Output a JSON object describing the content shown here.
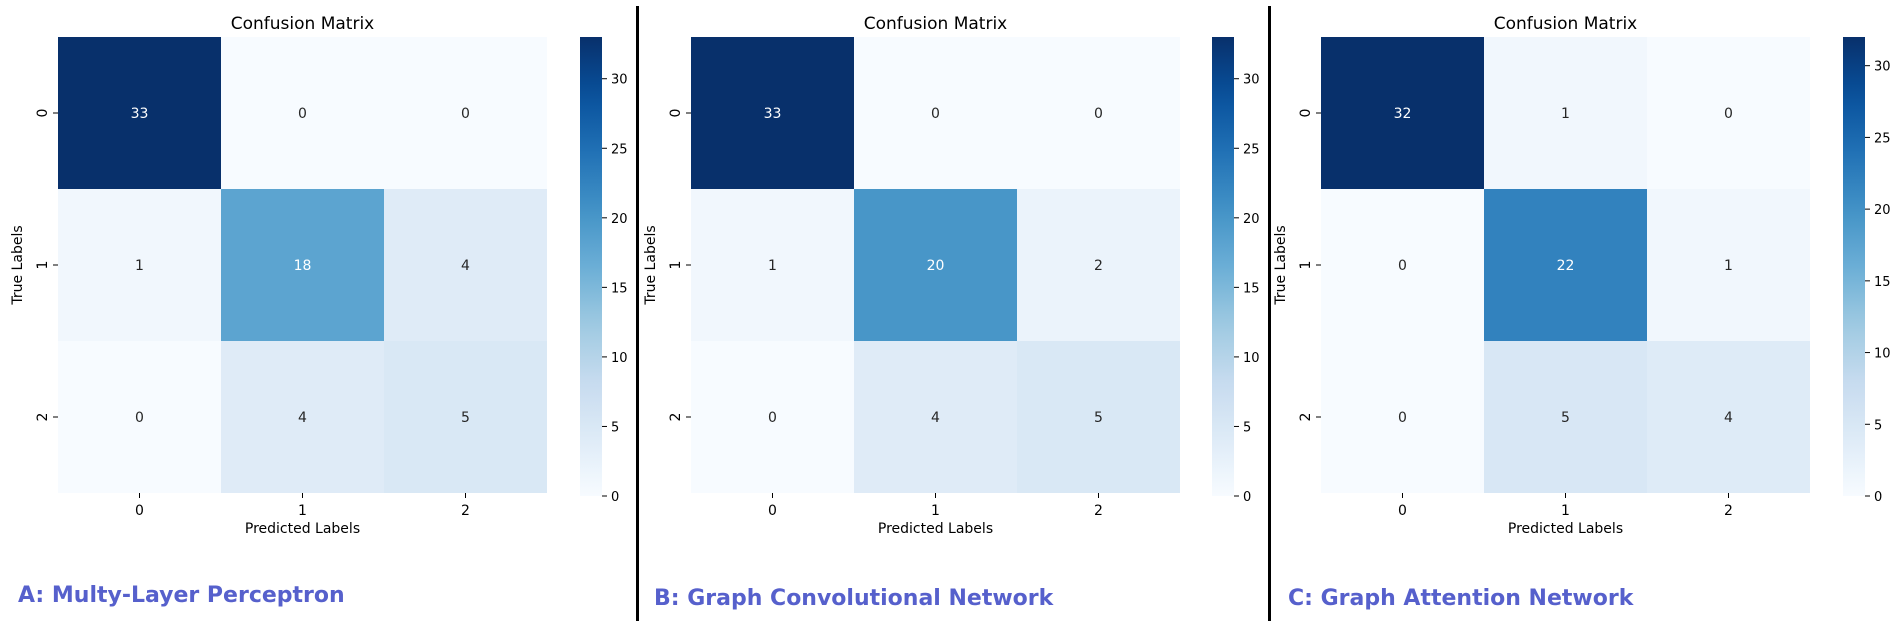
{
  "colormap": "Blues",
  "colors": {
    "cmap_low": "#f7fbff",
    "cmap_high": "#08306b",
    "caption": "#5660cc",
    "divider": "#000000"
  },
  "panels": [
    {
      "caption": "A: Multy-Layer Perceptron"
    },
    {
      "caption": "B: Graph Convolutional Network"
    },
    {
      "caption": "C: Graph Attention Network"
    }
  ],
  "chart_data": [
    {
      "type": "heatmap",
      "title": "Confusion Matrix",
      "xlabel": "Predicted Labels",
      "ylabel": "True Labels",
      "x_categories": [
        "0",
        "1",
        "2"
      ],
      "y_categories": [
        "0",
        "1",
        "2"
      ],
      "values": [
        [
          33,
          0,
          0
        ],
        [
          1,
          18,
          4
        ],
        [
          0,
          4,
          5
        ]
      ],
      "colorbar": {
        "range": [
          0,
          33
        ],
        "ticks": [
          0,
          5,
          10,
          15,
          20,
          25,
          30
        ]
      }
    },
    {
      "type": "heatmap",
      "title": "Confusion Matrix",
      "xlabel": "Predicted Labels",
      "ylabel": "True Labels",
      "x_categories": [
        "0",
        "1",
        "2"
      ],
      "y_categories": [
        "0",
        "1",
        "2"
      ],
      "values": [
        [
          33,
          0,
          0
        ],
        [
          1,
          20,
          2
        ],
        [
          0,
          4,
          5
        ]
      ],
      "colorbar": {
        "range": [
          0,
          33
        ],
        "ticks": [
          0,
          5,
          10,
          15,
          20,
          25,
          30
        ]
      }
    },
    {
      "type": "heatmap",
      "title": "Confusion Matrix",
      "xlabel": "Predicted Labels",
      "ylabel": "True Labels",
      "x_categories": [
        "0",
        "1",
        "2"
      ],
      "y_categories": [
        "0",
        "1",
        "2"
      ],
      "values": [
        [
          32,
          1,
          0
        ],
        [
          0,
          22,
          1
        ],
        [
          0,
          5,
          4
        ]
      ],
      "colorbar": {
        "range": [
          0,
          32
        ],
        "ticks": [
          0,
          5,
          10,
          15,
          20,
          25,
          30
        ]
      }
    }
  ]
}
